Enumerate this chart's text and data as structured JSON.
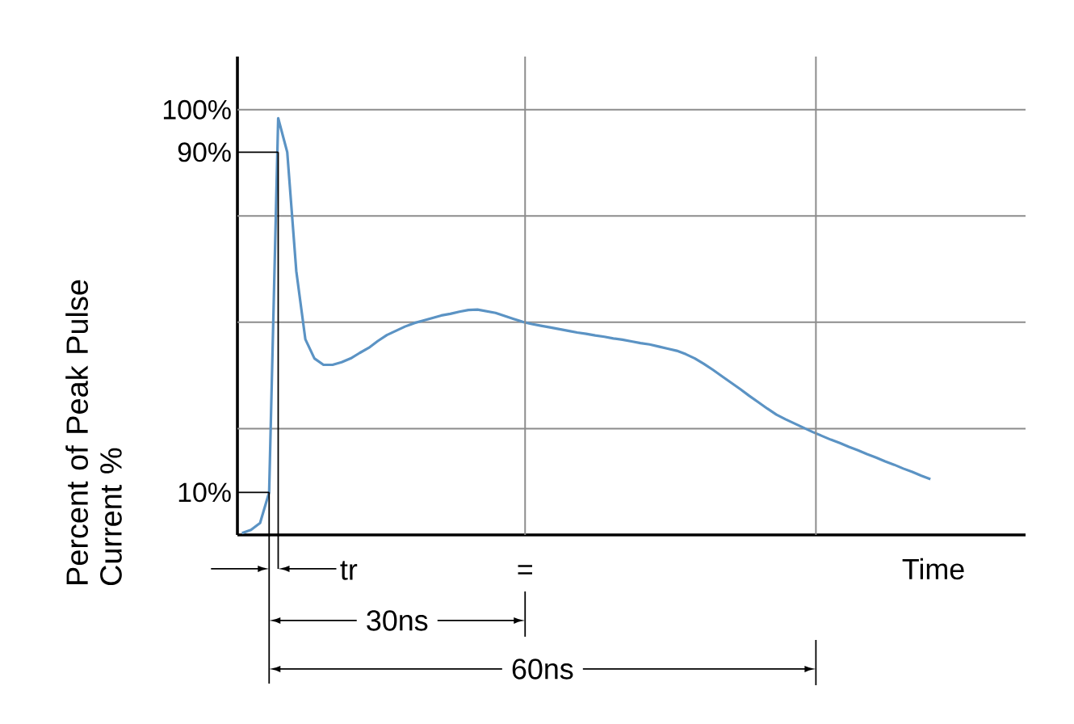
{
  "chart_data": {
    "type": "line",
    "xlabel": "Time",
    "ylabel": "Percent of Peak Pulse Current %",
    "categories": [
      null,
      null,
      null,
      null,
      null,
      null,
      null,
      null,
      null,
      null,
      null,
      null,
      null,
      null,
      null,
      null,
      null,
      null,
      null,
      null,
      null,
      null,
      null,
      null,
      null,
      null,
      null,
      null,
      null,
      null,
      null,
      null,
      null,
      null,
      null,
      null,
      null,
      null,
      null,
      null,
      null,
      null,
      null,
      null,
      null,
      null,
      null,
      null,
      null,
      null,
      null,
      null,
      null,
      null,
      null,
      null,
      null,
      null,
      null,
      null,
      null,
      null,
      null,
      null,
      null,
      null,
      null,
      null,
      null,
      null,
      null,
      null,
      null,
      null,
      null,
      null,
      null
    ],
    "series": [
      {
        "color": "#5b93c4",
        "values": [
          0.4,
          1.2,
          2.8,
          10,
          98,
          90,
          62,
          46,
          41.5,
          40,
          40,
          40.6,
          41.5,
          42.8,
          44,
          45.6,
          47,
          48,
          49,
          49.8,
          50.4,
          51,
          51.6,
          52,
          52.5,
          52.9,
          53,
          52.6,
          52.2,
          51.5,
          50.8,
          50.1,
          49.6,
          49.2,
          48.8,
          48.4,
          48,
          47.6,
          47.3,
          46.9,
          46.6,
          46.2,
          45.9,
          45.5,
          45.1,
          44.8,
          44.3,
          43.8,
          43.3,
          42.5,
          41.5,
          40.2,
          38.8,
          37.3,
          35.8,
          34.3,
          32.7,
          31.2,
          29.7,
          28.3,
          27.2,
          26.2,
          25.2,
          24.2,
          23.3,
          22.4,
          21.6,
          20.7,
          19.9,
          19,
          18.2,
          17.3,
          16.5,
          15.6,
          14.8,
          13.9,
          13.1
        ]
      }
    ],
    "ylim": [
      0,
      112.5
    ],
    "yticks": [
      {
        "value": 10,
        "label": "10%"
      },
      {
        "value": 90,
        "label": "90%"
      },
      {
        "value": 100,
        "label": "100%"
      }
    ],
    "tick_labels": "y",
    "ref_lines": [
      {
        "axis": "y",
        "value": 25,
        "color": "#8c8c8c"
      },
      {
        "axis": "y",
        "value": 50,
        "color": "#8c8c8c"
      },
      {
        "axis": "y",
        "value": 75,
        "color": "#8c8c8c"
      },
      {
        "axis": "y",
        "value": 100,
        "color": "#8c8c8c"
      }
    ],
    "annotations": [
      "tr",
      "=",
      "30ns",
      "60ns"
    ],
    "grid": false,
    "marker": "none",
    "line_style": "solid"
  }
}
